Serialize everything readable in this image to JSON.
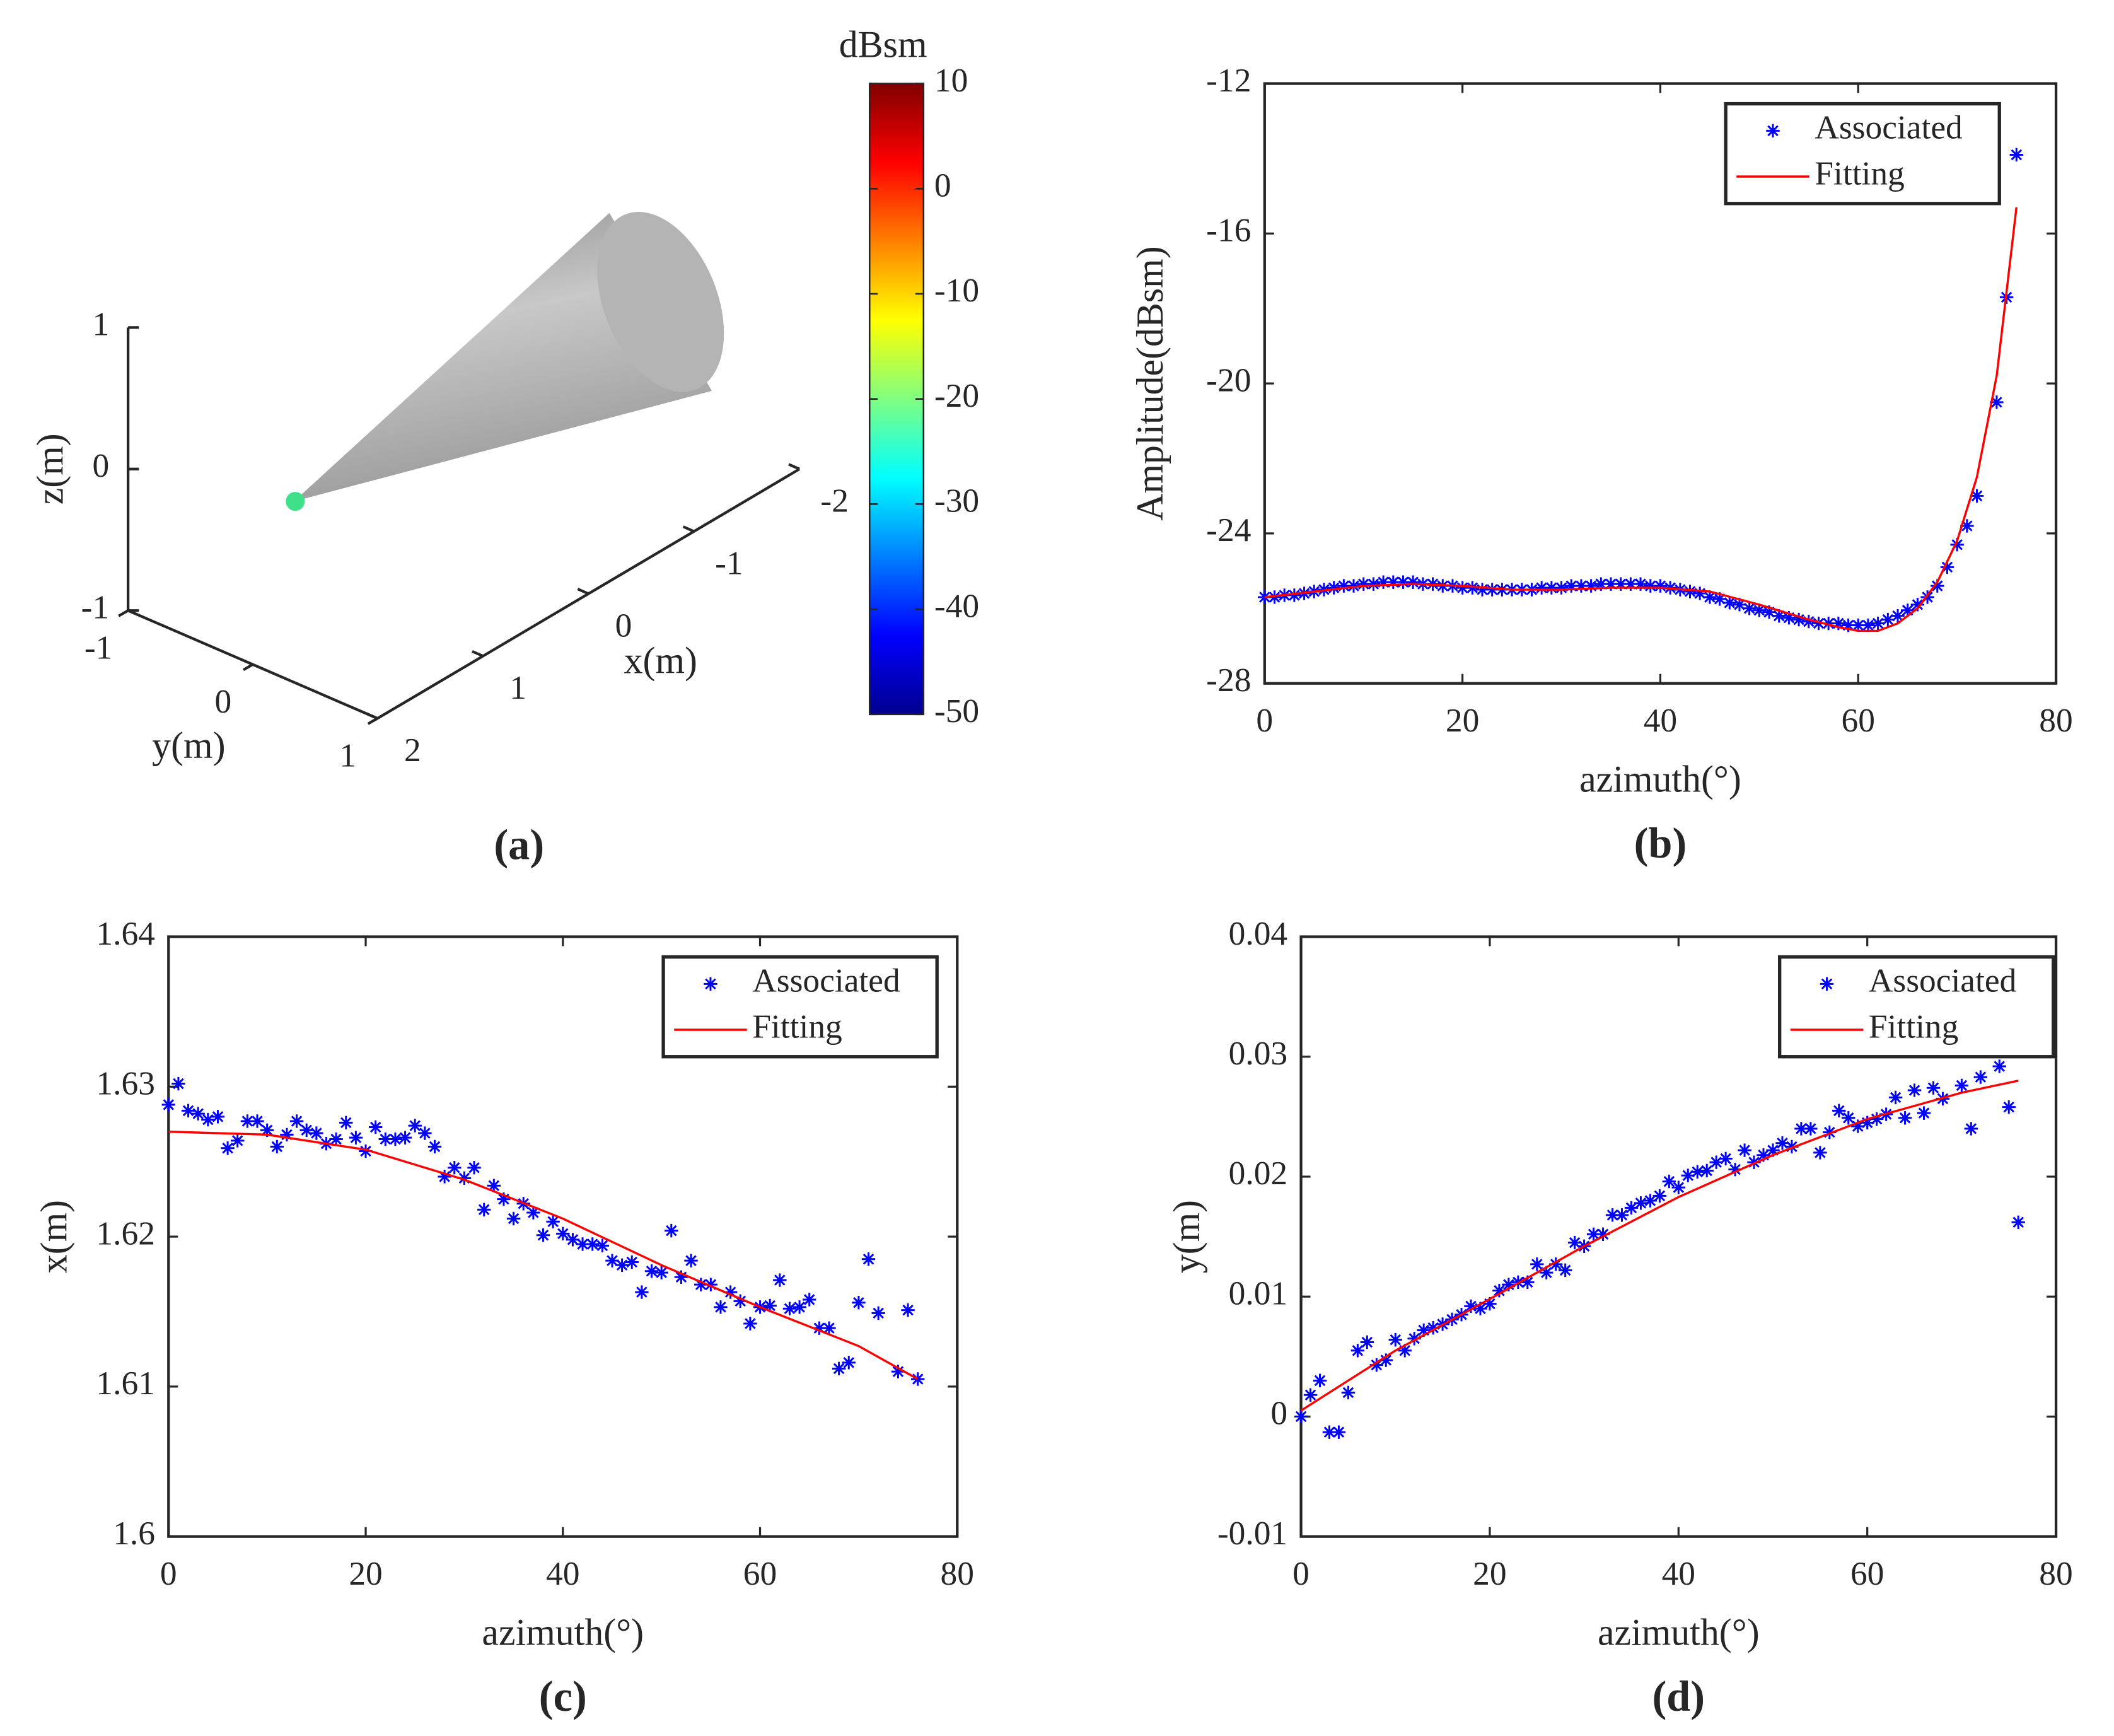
{
  "chart_data": [
    {
      "type": "3d",
      "caption": "(a)",
      "xlabel": "x(m)",
      "ylabel": "y(m)",
      "zlabel": "z(m)",
      "xlim": [
        -2,
        2
      ],
      "xticks": [
        -2,
        -1,
        0,
        1,
        2
      ],
      "ylim": [
        -1,
        1
      ],
      "yticks": [
        -1,
        0,
        1
      ],
      "zlim": [
        -1,
        1
      ],
      "zticks": [
        -1,
        0,
        1
      ],
      "colorbar": {
        "label": "dBsm",
        "lim": [
          -50,
          10
        ],
        "ticks": [
          -50,
          -40,
          -30,
          -20,
          -10,
          0,
          10
        ]
      }
    },
    {
      "type": "scatter",
      "caption": "(b)",
      "xlabel": "azimuth(°)",
      "ylabel": "Amplitude(dBsm)",
      "legend": "upper right",
      "xlim": [
        0,
        80
      ],
      "xticks": [
        0,
        20,
        40,
        60,
        80
      ],
      "ylim": [
        -28,
        -12
      ],
      "yticks": [
        -28,
        -24,
        -20,
        -16,
        -12
      ],
      "series": [
        {
          "name": "Associated",
          "type": "scatter",
          "color": "#0000ff",
          "x": [
            0,
            1,
            2,
            3,
            4,
            5,
            6,
            7,
            8,
            9,
            10,
            11,
            12,
            13,
            14,
            15,
            16,
            17,
            18,
            19,
            20,
            21,
            22,
            23,
            24,
            25,
            26,
            27,
            28,
            29,
            30,
            31,
            32,
            33,
            34,
            35,
            36,
            37,
            38,
            39,
            40,
            41,
            42,
            43,
            44,
            45,
            46,
            47,
            48,
            49,
            50,
            51,
            52,
            53,
            54,
            55,
            56,
            57,
            58,
            59,
            60,
            61,
            62,
            63,
            64,
            65,
            66,
            67,
            68,
            69,
            70,
            71,
            72,
            74,
            75,
            76
          ],
          "values": [
            -25.7,
            -25.7,
            -25.65,
            -25.65,
            -25.6,
            -25.55,
            -25.5,
            -25.45,
            -25.4,
            -25.4,
            -25.35,
            -25.35,
            -25.3,
            -25.3,
            -25.3,
            -25.3,
            -25.35,
            -25.35,
            -25.4,
            -25.4,
            -25.45,
            -25.45,
            -25.5,
            -25.5,
            -25.5,
            -25.5,
            -25.5,
            -25.5,
            -25.45,
            -25.45,
            -25.45,
            -25.4,
            -25.4,
            -25.4,
            -25.35,
            -25.35,
            -25.35,
            -25.35,
            -25.35,
            -25.4,
            -25.4,
            -25.45,
            -25.5,
            -25.55,
            -25.6,
            -25.7,
            -25.75,
            -25.85,
            -25.9,
            -26.0,
            -26.05,
            -26.1,
            -26.2,
            -26.25,
            -26.3,
            -26.35,
            -26.4,
            -26.4,
            -26.4,
            -26.45,
            -26.45,
            -26.45,
            -26.4,
            -26.3,
            -26.2,
            -26.05,
            -25.9,
            -25.7,
            -25.4,
            -24.9,
            -24.3,
            -23.8,
            -23.0,
            -20.5,
            -17.7,
            -13.9
          ]
        },
        {
          "name": "Fitting",
          "type": "line",
          "color": "#ff0000",
          "x": [
            0,
            5,
            10,
            15,
            20,
            25,
            30,
            35,
            40,
            45,
            50,
            55,
            58,
            60,
            62,
            64,
            66,
            68,
            70,
            72,
            74,
            76
          ],
          "values": [
            -25.7,
            -25.55,
            -25.4,
            -25.35,
            -25.4,
            -25.5,
            -25.5,
            -25.45,
            -25.45,
            -25.55,
            -25.9,
            -26.3,
            -26.5,
            -26.6,
            -26.6,
            -26.4,
            -26.0,
            -25.3,
            -24.2,
            -22.5,
            -19.8,
            -15.3
          ]
        }
      ]
    },
    {
      "type": "scatter",
      "caption": "(c)",
      "xlabel": "azimuth(°)",
      "ylabel": "x(m)",
      "legend": "upper right",
      "xlim": [
        0,
        80
      ],
      "xticks": [
        0,
        20,
        40,
        60,
        80
      ],
      "ylim": [
        1.6,
        1.64
      ],
      "yticks": [
        1.6,
        1.61,
        1.62,
        1.63,
        1.64
      ],
      "series": [
        {
          "name": "Associated",
          "type": "scatter",
          "color": "#0000ff",
          "x": [
            0,
            1,
            2,
            3,
            4,
            5,
            6,
            7,
            8,
            9,
            10,
            11,
            12,
            13,
            14,
            15,
            16,
            17,
            18,
            19,
            20,
            21,
            22,
            23,
            24,
            25,
            26,
            27,
            28,
            29,
            30,
            31,
            32,
            33,
            34,
            35,
            36,
            37,
            38,
            39,
            40,
            41,
            42,
            43,
            44,
            45,
            46,
            47,
            48,
            49,
            50,
            51,
            52,
            53,
            54,
            55,
            56,
            57,
            58,
            59,
            60,
            61,
            62,
            63,
            64,
            65,
            66,
            67,
            68,
            69,
            70,
            71,
            72,
            74,
            75,
            76
          ],
          "values": [
            1.6288,
            1.6302,
            1.6284,
            1.6282,
            1.6278,
            1.628,
            1.6259,
            1.6264,
            1.6277,
            1.6277,
            1.6271,
            1.626,
            1.6268,
            1.6277,
            1.6271,
            1.6269,
            1.6262,
            1.6265,
            1.6276,
            1.6266,
            1.6257,
            1.6273,
            1.6265,
            1.6265,
            1.6266,
            1.6274,
            1.6269,
            1.626,
            1.624,
            1.6246,
            1.6239,
            1.6246,
            1.6218,
            1.6234,
            1.6225,
            1.6212,
            1.6222,
            1.6216,
            1.6201,
            1.621,
            1.6202,
            1.6198,
            1.6195,
            1.6195,
            1.6194,
            1.6184,
            1.6181,
            1.6183,
            1.6163,
            1.6177,
            1.6176,
            1.6204,
            1.6173,
            1.6184,
            1.6168,
            1.6168,
            1.6153,
            1.6163,
            1.6157,
            1.6142,
            1.6153,
            1.6154,
            1.6171,
            1.6152,
            1.6153,
            1.6158,
            1.6139,
            1.6139,
            1.6112,
            1.6116,
            1.6156,
            1.6185,
            1.6149,
            1.611,
            1.6151,
            1.6105
          ]
        },
        {
          "name": "Fitting",
          "type": "line",
          "color": "#ff0000",
          "x": [
            0,
            10,
            20,
            30,
            40,
            50,
            60,
            70,
            76
          ],
          "values": [
            1.627,
            1.6268,
            1.6258,
            1.6238,
            1.6212,
            1.6181,
            1.6153,
            1.6127,
            1.6105
          ]
        }
      ]
    },
    {
      "type": "scatter",
      "caption": "(d)",
      "xlabel": "azimuth(°)",
      "ylabel": "y(m)",
      "legend": "upper right",
      "xlim": [
        0,
        80
      ],
      "xticks": [
        0,
        20,
        40,
        60,
        80
      ],
      "ylim": [
        -0.01,
        0.04
      ],
      "yticks": [
        -0.01,
        0,
        0.01,
        0.02,
        0.03,
        0.04
      ],
      "series": [
        {
          "name": "Associated",
          "type": "scatter",
          "color": "#0000ff",
          "x": [
            0,
            1,
            2,
            3,
            4,
            5,
            6,
            7,
            8,
            9,
            10,
            11,
            12,
            13,
            14,
            15,
            16,
            17,
            18,
            19,
            20,
            21,
            22,
            23,
            24,
            25,
            26,
            27,
            28,
            29,
            30,
            31,
            32,
            33,
            34,
            35,
            36,
            37,
            38,
            39,
            40,
            41,
            42,
            43,
            44,
            45,
            46,
            47,
            48,
            49,
            50,
            51,
            52,
            53,
            54,
            55,
            56,
            57,
            58,
            59,
            60,
            61,
            62,
            63,
            64,
            65,
            66,
            67,
            68,
            70,
            71,
            72,
            74,
            75,
            76
          ],
          "values": [
            0.0,
            0.0018,
            0.003,
            -0.0013,
            -0.0013,
            0.002,
            0.0055,
            0.0062,
            0.0043,
            0.0047,
            0.0064,
            0.0055,
            0.0065,
            0.0072,
            0.0074,
            0.0077,
            0.0081,
            0.0085,
            0.0092,
            0.009,
            0.0094,
            0.0105,
            0.011,
            0.0112,
            0.0112,
            0.0127,
            0.012,
            0.0127,
            0.0122,
            0.0145,
            0.0142,
            0.0152,
            0.0152,
            0.0168,
            0.0168,
            0.0174,
            0.0178,
            0.018,
            0.0184,
            0.0196,
            0.0191,
            0.0201,
            0.0204,
            0.0205,
            0.0212,
            0.0215,
            0.0206,
            0.0222,
            0.0212,
            0.0218,
            0.0222,
            0.0228,
            0.0225,
            0.024,
            0.024,
            0.022,
            0.0237,
            0.0255,
            0.0249,
            0.0242,
            0.0245,
            0.0248,
            0.0252,
            0.0266,
            0.0249,
            0.0272,
            0.0253,
            0.0274,
            0.0265,
            0.0276,
            0.024,
            0.0283,
            0.0292,
            0.0258,
            0.0162
          ]
        },
        {
          "name": "Fitting",
          "type": "line",
          "color": "#ff0000",
          "x": [
            0,
            10,
            20,
            30,
            40,
            50,
            60,
            70,
            76
          ],
          "values": [
            0.0005,
            0.0055,
            0.0098,
            0.0142,
            0.0183,
            0.0218,
            0.0248,
            0.027,
            0.028
          ]
        }
      ]
    }
  ]
}
